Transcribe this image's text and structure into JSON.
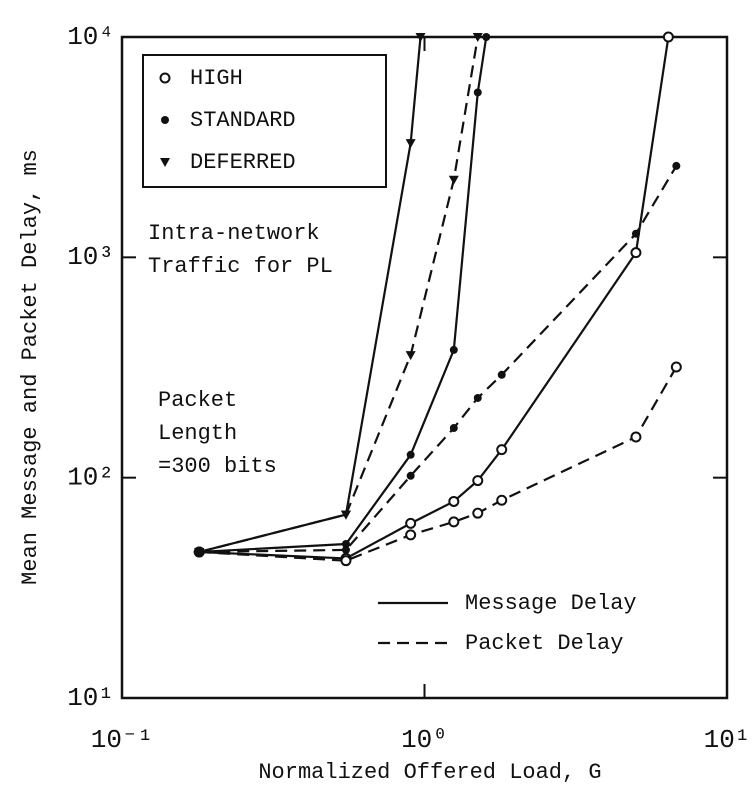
{
  "chart_data": {
    "type": "line",
    "log_x": true,
    "log_y": true,
    "x_label": "Normalized Offered Load,  G",
    "y_label": "Mean Message and Packet Delay, ms",
    "xlim": [
      0.1,
      10
    ],
    "ylim": [
      10,
      10000
    ],
    "xticks": [
      {
        "value": 0.1,
        "label": "10⁻¹"
      },
      {
        "value": 1,
        "label": "10⁰"
      },
      {
        "value": 10,
        "label": "10¹"
      }
    ],
    "yticks": [
      {
        "value": 10,
        "label": "10¹"
      },
      {
        "value": 100,
        "label": "10²"
      },
      {
        "value": 1000,
        "label": "10³"
      },
      {
        "value": 10000,
        "label": "10⁴"
      }
    ],
    "annotations": [
      [
        "Intra-network",
        "Traffic for PL"
      ],
      [
        "Packet",
        "Length",
        "=300 bits"
      ]
    ],
    "line_styles": {
      "message_delay": {
        "label": "Message Delay",
        "dash": "solid"
      },
      "packet_delay": {
        "label": "Packet Delay",
        "dash": "dashed"
      }
    },
    "color": "#111111",
    "series": [
      {
        "name": "HIGH",
        "marker": "open-circle",
        "message_delay": {
          "x": [
            0.18,
            0.55,
            0.9,
            1.25,
            1.5,
            1.8,
            5.0,
            6.4
          ],
          "values": [
            46,
            43,
            62,
            78,
            97,
            134,
            1050,
            10000
          ]
        },
        "packet_delay": {
          "x": [
            0.18,
            0.55,
            0.9,
            1.25,
            1.5,
            1.8,
            5.0,
            6.8
          ],
          "values": [
            46,
            42,
            55,
            63,
            69,
            79,
            153,
            318
          ]
        }
      },
      {
        "name": "STANDARD",
        "marker": "filled-circle",
        "message_delay": {
          "x": [
            0.18,
            0.55,
            0.9,
            1.25,
            1.5,
            1.6
          ],
          "values": [
            46,
            50,
            127,
            380,
            5600,
            10000
          ]
        },
        "packet_delay": {
          "x": [
            0.18,
            0.55,
            0.9,
            1.25,
            1.5,
            1.8,
            5.0,
            6.8
          ],
          "values": [
            46,
            47,
            102,
            168,
            230,
            293,
            1280,
            2600
          ]
        }
      },
      {
        "name": "DEFERRED",
        "marker": "filled-triangle",
        "message_delay": {
          "x": [
            0.18,
            0.55,
            0.9,
            0.97
          ],
          "values": [
            46,
            68,
            3300,
            10000
          ]
        },
        "packet_delay": {
          "x": [
            0.18,
            0.55,
            0.9,
            1.25,
            1.5
          ],
          "values": [
            46,
            68,
            360,
            2250,
            10000
          ]
        }
      }
    ]
  }
}
